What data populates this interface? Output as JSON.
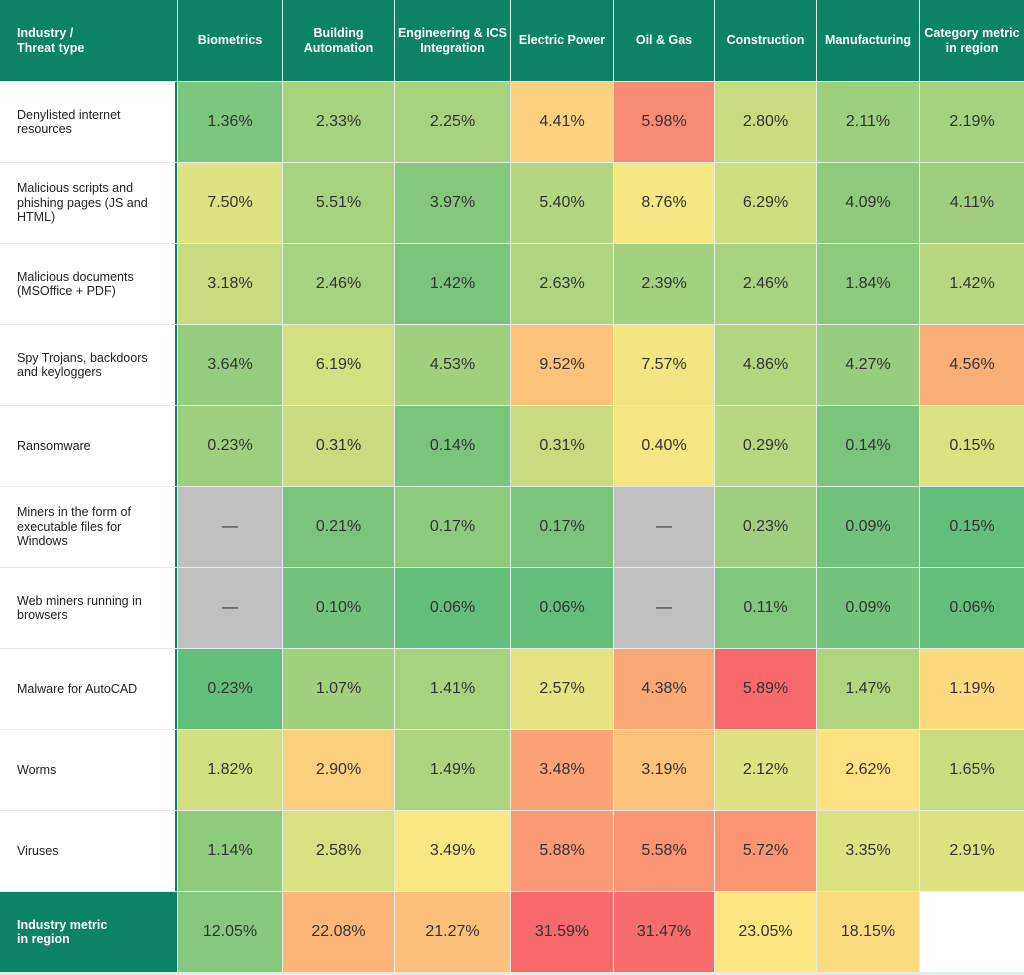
{
  "table": {
    "header": [
      "Industry /\nThreat type",
      "Biometrics",
      "Building\nAutomation",
      "Engineering & ICS\nIntegration",
      "Electric Power",
      "Oil & Gas",
      "Construction",
      "Manufacturing",
      "Category metric\nin region"
    ],
    "header_color": "#0b8364",
    "rows": [
      {
        "label": "Denylisted internet resources",
        "cells": [
          "1.36%",
          "2.33%",
          "2.25%",
          "4.41%",
          "5.98%",
          "2.80%",
          "2.11%",
          "2.19%"
        ],
        "colors": [
          "#7dc67e",
          "#a9d27f",
          "#a9d27f",
          "#fdd17f",
          "#f98b74",
          "#c9db80",
          "#9dcf7e",
          "#a6d17f"
        ]
      },
      {
        "label": "Malicious scripts and phishing pages (JS and HTML)",
        "cells": [
          "7.50%",
          "5.51%",
          "3.97%",
          "5.40%",
          "8.76%",
          "6.29%",
          "4.09%",
          "4.11%"
        ],
        "colors": [
          "#dde382",
          "#a9d27f",
          "#85c87d",
          "#b5d680",
          "#f5e783",
          "#cfdd81",
          "#8ecb7d",
          "#9fcf7e"
        ]
      },
      {
        "label": "Malicious documents (MSOffice + PDF)",
        "cells": [
          "3.18%",
          "2.46%",
          "1.42%",
          "2.63%",
          "2.39%",
          "2.46%",
          "1.84%",
          "1.42%"
        ],
        "colors": [
          "#c9db80",
          "#a8d27f",
          "#7ac47c",
          "#b0d47f",
          "#a4d17e",
          "#aad37f",
          "#8ccb7d",
          "#b9d780"
        ]
      },
      {
        "label": "Spy Trojans, backdoors and keyloggers",
        "cells": [
          "3.64%",
          "6.19%",
          "4.53%",
          "9.52%",
          "7.57%",
          "4.86%",
          "4.27%",
          "4.56%"
        ],
        "colors": [
          "#95cd7e",
          "#d4df81",
          "#a2d07e",
          "#fcc27c",
          "#f2e683",
          "#b3d580",
          "#96cd7e",
          "#fbaf78"
        ]
      },
      {
        "label": "Ransomware",
        "cells": [
          "0.23%",
          "0.31%",
          "0.14%",
          "0.31%",
          "0.40%",
          "0.29%",
          "0.14%",
          "0.15%"
        ],
        "colors": [
          "#9ecf7e",
          "#c8db80",
          "#7ac47c",
          "#c8db80",
          "#f3e683",
          "#b8d780",
          "#7ac47c",
          "#d9e182"
        ]
      },
      {
        "label": "Miners in the form of executable files for Windows",
        "cells": [
          "—",
          "0.21%",
          "0.17%",
          "0.17%",
          "—",
          "0.23%",
          "0.09%",
          "0.15%"
        ],
        "colors": [
          "#c0c0c0",
          "#7ac47c",
          "#8cca7d",
          "#7ac47c",
          "#c0c0c0",
          "#9fcf7e",
          "#71c27c",
          "#63be7b"
        ]
      },
      {
        "label": "Web miners running in browsers",
        "cells": [
          "—",
          "0.10%",
          "0.06%",
          "0.06%",
          "—",
          "0.11%",
          "0.09%",
          "0.06%"
        ],
        "colors": [
          "#c0c0c0",
          "#73c27c",
          "#63be7b",
          "#63be7b",
          "#c0c0c0",
          "#80c77d",
          "#74c37c",
          "#63be7b"
        ]
      },
      {
        "label": "Malware for AutoCAD",
        "cells": [
          "0.23%",
          "1.07%",
          "1.41%",
          "2.57%",
          "4.38%",
          "5.89%",
          "1.47%",
          "1.19%"
        ],
        "colors": [
          "#63be7b",
          "#a1d07e",
          "#a9d27f",
          "#e5e382",
          "#fba877",
          "#f8696b",
          "#b1d47f",
          "#fed980"
        ]
      },
      {
        "label": "Worms",
        "cells": [
          "1.82%",
          "2.90%",
          "1.49%",
          "3.48%",
          "3.19%",
          "2.12%",
          "2.62%",
          "1.65%"
        ],
        "colors": [
          "#d2de81",
          "#fdd07f",
          "#aed47f",
          "#fba276",
          "#fdc27c",
          "#dde382",
          "#fee182",
          "#c7db80"
        ]
      },
      {
        "label": "Viruses",
        "cells": [
          "1.14%",
          "2.58%",
          "3.49%",
          "5.88%",
          "5.58%",
          "5.72%",
          "3.35%",
          "2.91%"
        ],
        "colors": [
          "#8fcb7d",
          "#d8e081",
          "#f9e883",
          "#fa9a74",
          "#fa9473",
          "#fa9473",
          "#dde382",
          "#dde382"
        ]
      }
    ],
    "footer": {
      "label": "Industry metric\nin region",
      "cells": [
        "12.05%",
        "22.08%",
        "21.27%",
        "31.59%",
        "31.47%",
        "23.05%",
        "18.15%"
      ],
      "colors": [
        "#86c87d",
        "#fcb679",
        "#fcc07c",
        "#f8696b",
        "#f86c6b",
        "#fee783",
        "#fddc81"
      ]
    }
  }
}
